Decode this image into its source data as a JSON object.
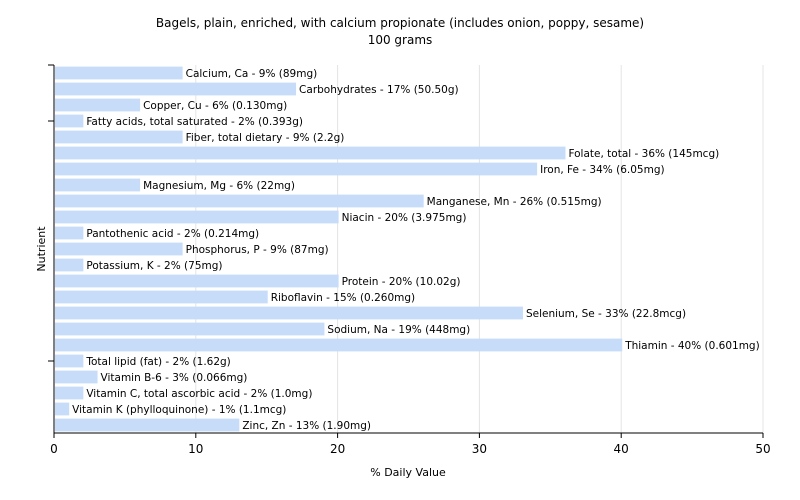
{
  "chart_data": {
    "type": "bar",
    "orientation": "horizontal",
    "title": "Bagels, plain, enriched, with calcium propionate (includes onion, poppy, sesame)",
    "subtitle": "100 grams",
    "xlabel": "% Daily Value",
    "ylabel": "Nutrient",
    "xlim": [
      0,
      50
    ],
    "xticks": [
      0,
      10,
      20,
      30,
      40,
      50
    ],
    "grid": true,
    "bar_color": "#c6dcf9",
    "categories": [
      "Calcium, Ca",
      "Carbohydrates",
      "Copper, Cu",
      "Fatty acids, total saturated",
      "Fiber, total dietary",
      "Folate, total",
      "Iron, Fe",
      "Magnesium, Mg",
      "Manganese, Mn",
      "Niacin",
      "Pantothenic acid",
      "Phosphorus, P",
      "Potassium, K",
      "Protein",
      "Riboflavin",
      "Selenium, Se",
      "Sodium, Na",
      "Thiamin",
      "Total lipid (fat)",
      "Vitamin B-6",
      "Vitamin C, total ascorbic acid",
      "Vitamin K (phylloquinone)",
      "Zinc, Zn"
    ],
    "values": [
      9,
      17,
      6,
      2,
      9,
      36,
      34,
      6,
      26,
      20,
      2,
      9,
      2,
      20,
      15,
      33,
      19,
      40,
      2,
      3,
      2,
      1,
      13
    ],
    "labels": [
      "Calcium, Ca - 9% (89mg)",
      "Carbohydrates - 17% (50.50g)",
      "Copper, Cu - 6% (0.130mg)",
      "Fatty acids, total saturated - 2% (0.393g)",
      "Fiber, total dietary - 9% (2.2g)",
      "Folate, total - 36% (145mcg)",
      "Iron, Fe - 34% (6.05mg)",
      "Magnesium, Mg - 6% (22mg)",
      "Manganese, Mn - 26% (0.515mg)",
      "Niacin - 20% (3.975mg)",
      "Pantothenic acid - 2% (0.214mg)",
      "Phosphorus, P - 9% (87mg)",
      "Potassium, K - 2% (75mg)",
      "Protein - 20% (10.02g)",
      "Riboflavin - 15% (0.260mg)",
      "Selenium, Se - 33% (22.8mcg)",
      "Sodium, Na - 19% (448mg)",
      "Thiamin - 40% (0.601mg)",
      "Total lipid (fat) - 2% (1.62g)",
      "Vitamin B-6 - 3% (0.066mg)",
      "Vitamin C, total ascorbic acid - 2% (1.0mg)",
      "Vitamin K (phylloquinone) - 1% (1.1mcg)",
      "Zinc, Zn - 13% (1.90mg)"
    ]
  }
}
